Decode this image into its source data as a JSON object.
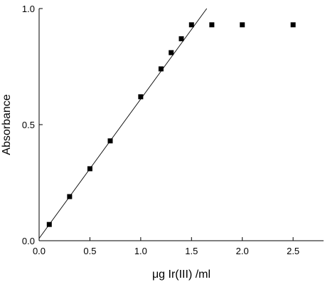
{
  "chart_data": {
    "type": "scatter",
    "title": "",
    "xlabel": "μg Ir(III) /ml",
    "ylabel": "Absorbance",
    "xlim": [
      0.0,
      2.8
    ],
    "ylim": [
      0.0,
      1.0
    ],
    "x_ticks": [
      {
        "value": 0.0,
        "label": "0.0"
      },
      {
        "value": 0.5,
        "label": "0.5"
      },
      {
        "value": 1.0,
        "label": "1.0"
      },
      {
        "value": 1.5,
        "label": "1.5"
      },
      {
        "value": 2.0,
        "label": "2.0"
      },
      {
        "value": 2.5,
        "label": "2.5"
      }
    ],
    "y_ticks": [
      {
        "value": 0.0,
        "label": "0.0"
      },
      {
        "value": 0.5,
        "label": "0.5"
      },
      {
        "value": 1.0,
        "label": "1.0"
      }
    ],
    "grid": false,
    "legend": "none",
    "marker": "square",
    "marker_color": "#000000",
    "points": [
      {
        "x": 0.1,
        "y": 0.07
      },
      {
        "x": 0.3,
        "y": 0.19
      },
      {
        "x": 0.5,
        "y": 0.31
      },
      {
        "x": 0.7,
        "y": 0.43
      },
      {
        "x": 1.0,
        "y": 0.62
      },
      {
        "x": 1.2,
        "y": 0.74
      },
      {
        "x": 1.3,
        "y": 0.81
      },
      {
        "x": 1.4,
        "y": 0.87
      },
      {
        "x": 1.5,
        "y": 0.93
      },
      {
        "x": 1.7,
        "y": 0.93
      },
      {
        "x": 2.0,
        "y": 0.93
      },
      {
        "x": 2.5,
        "y": 0.93
      }
    ],
    "fit_line": {
      "slope": 0.6,
      "intercept": 0.01,
      "x_start": 0.0,
      "y_end": 1.0,
      "color": "#000000"
    }
  }
}
